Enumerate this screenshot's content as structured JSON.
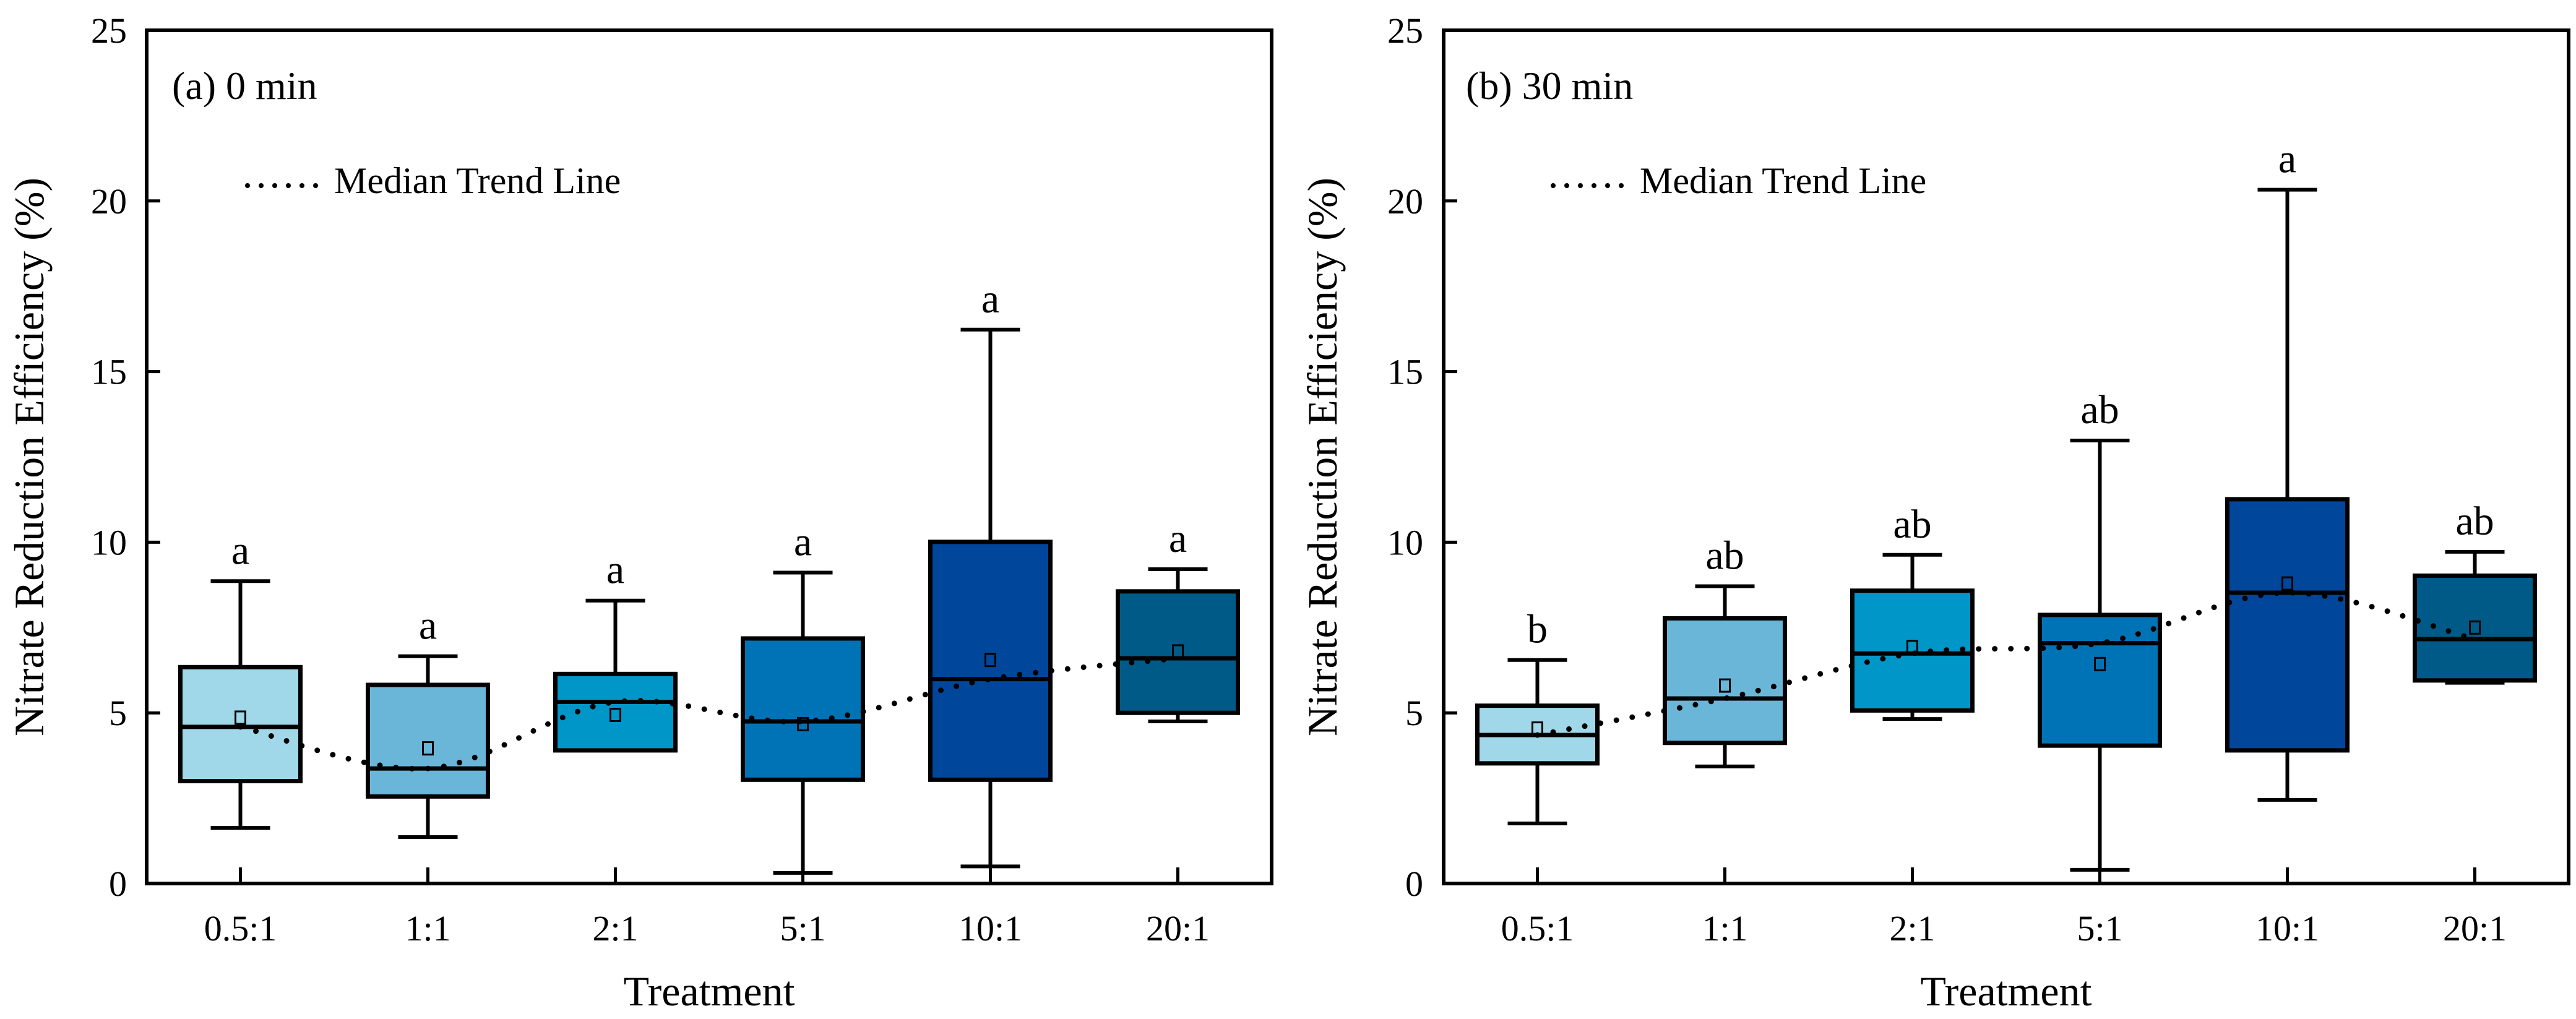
{
  "chart_data": [
    {
      "type": "box",
      "panel_label": "(a) 0 min",
      "xlabel": "Treatment",
      "ylabel": "Nitrate Reduction Efficiency (%)",
      "ylim": [
        0,
        25
      ],
      "yticks": [
        "0",
        "5",
        "10",
        "15",
        "20",
        "25"
      ],
      "legend": "Median Trend Line",
      "legend_marker": "......",
      "categories": [
        "0.5:1",
        "1:1",
        "2:1",
        "5:1",
        "10:1",
        "20:1"
      ],
      "colors": [
        "#a0d8ea",
        "#6ab6d8",
        "#0096c8",
        "#0072b6",
        "#00479c",
        "#005a87"
      ],
      "boxes": [
        {
          "min": 1.63,
          "q1": 3.0,
          "median": 4.59,
          "q3": 6.34,
          "max": 8.86,
          "mean": 4.86,
          "letter": "a"
        },
        {
          "min": 1.36,
          "q1": 2.55,
          "median": 3.37,
          "q3": 5.82,
          "max": 6.66,
          "mean": 3.96,
          "letter": "a"
        },
        {
          "min": 3.9,
          "q1": 3.9,
          "median": 5.32,
          "q3": 6.14,
          "max": 8.29,
          "mean": 4.94,
          "letter": "a"
        },
        {
          "min": 0.31,
          "q1": 3.04,
          "median": 4.75,
          "q3": 7.18,
          "max": 9.11,
          "mean": 4.67,
          "letter": "a"
        },
        {
          "min": 0.5,
          "q1": 3.04,
          "median": 5.99,
          "q3": 10.01,
          "max": 16.23,
          "mean": 6.55,
          "letter": "a"
        },
        {
          "min": 4.75,
          "q1": 5.0,
          "median": 6.6,
          "q3": 8.56,
          "max": 9.21,
          "mean": 6.8,
          "letter": "a"
        }
      ]
    },
    {
      "type": "box",
      "panel_label": "(b) 30 min",
      "xlabel": "Treatment",
      "ylabel": "Nitrate Reduction Efficiency (%)",
      "ylim": [
        0,
        25
      ],
      "yticks": [
        "0",
        "5",
        "10",
        "15",
        "20",
        "25"
      ],
      "legend": "Median Trend Line",
      "legend_marker": "......",
      "categories": [
        "0.5:1",
        "1:1",
        "2:1",
        "5:1",
        "10:1",
        "20:1"
      ],
      "colors": [
        "#a0d8ea",
        "#6ab6d8",
        "#0096c8",
        "#0072b6",
        "#00479c",
        "#005a87"
      ],
      "boxes": [
        {
          "min": 1.76,
          "q1": 3.52,
          "median": 4.35,
          "q3": 5.21,
          "max": 6.55,
          "mean": 4.54,
          "letter": "b"
        },
        {
          "min": 3.43,
          "q1": 4.12,
          "median": 5.42,
          "q3": 7.77,
          "max": 8.71,
          "mean": 5.8,
          "letter": "ab"
        },
        {
          "min": 4.82,
          "q1": 5.07,
          "median": 6.74,
          "q3": 8.58,
          "max": 9.63,
          "mean": 6.93,
          "letter": "ab"
        },
        {
          "min": 0.4,
          "q1": 4.04,
          "median": 7.04,
          "q3": 7.87,
          "max": 12.98,
          "mean": 6.43,
          "letter": "ab"
        },
        {
          "min": 2.45,
          "q1": 3.9,
          "median": 8.52,
          "q3": 11.26,
          "max": 20.33,
          "mean": 8.79,
          "letter": "a"
        },
        {
          "min": 5.88,
          "q1": 5.95,
          "median": 7.16,
          "q3": 9.02,
          "max": 9.72,
          "mean": 7.5,
          "letter": "ab"
        }
      ]
    }
  ]
}
